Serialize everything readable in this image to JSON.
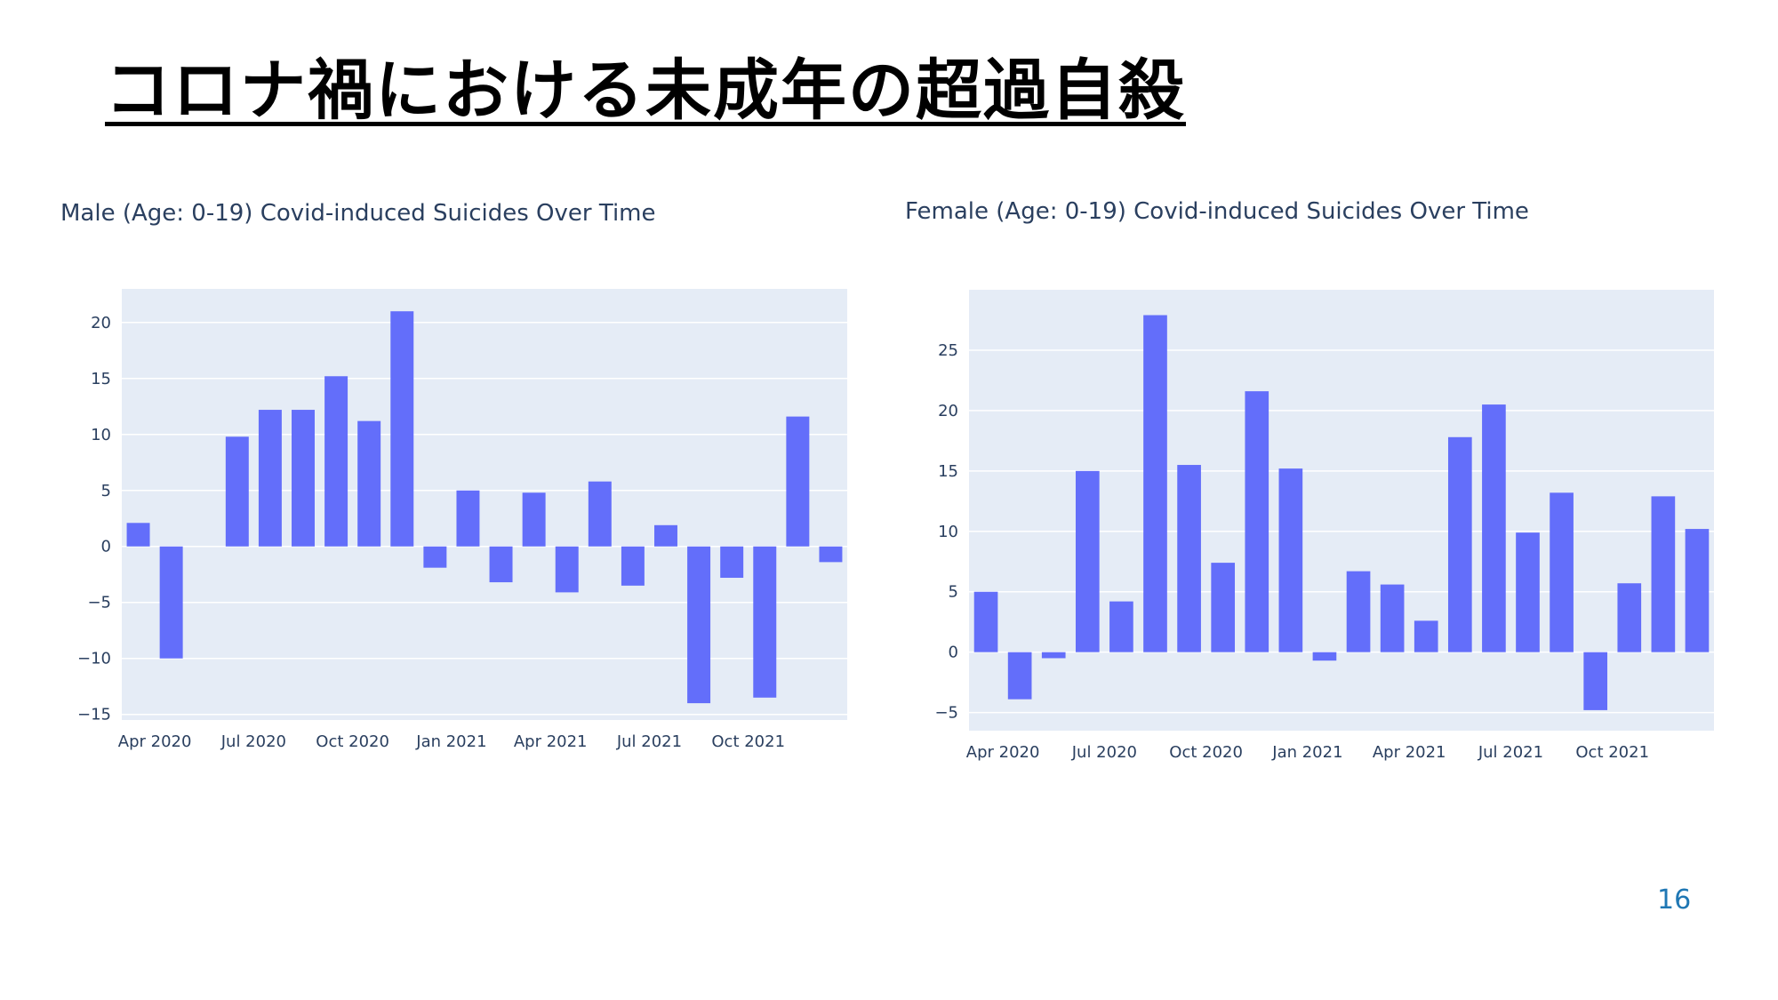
{
  "slide": {
    "title": "コロナ禍における未成年の超過自殺",
    "page_number": "16"
  },
  "colors": {
    "bar": "#636efa",
    "plot_bg": "#e5ecf6",
    "grid": "#ffffff",
    "tick_text": "#2a3f5f"
  },
  "chart_data": [
    {
      "id": "male",
      "type": "bar",
      "title": "Male (Age: 0-19) Covid-induced Suicides Over Time",
      "xlabel": "",
      "ylabel": "",
      "x": [
        "2020-03",
        "2020-04",
        "2020-05",
        "2020-06",
        "2020-07",
        "2020-08",
        "2020-09",
        "2020-10",
        "2020-11",
        "2020-12",
        "2021-01",
        "2021-02",
        "2021-03",
        "2021-04",
        "2021-05",
        "2021-06",
        "2021-07",
        "2021-08",
        "2021-09",
        "2021-10",
        "2021-11",
        "2021-12"
      ],
      "values": [
        2.1,
        -10,
        0,
        9.8,
        12.2,
        12.2,
        15.2,
        11.2,
        21,
        -1.9,
        5,
        -3.2,
        4.8,
        -4.1,
        5.8,
        -3.5,
        1.9,
        -14,
        -2.8,
        -13.5,
        11.6,
        -1.4
      ],
      "x_tick_labels": [
        "Apr 2020",
        "Jul 2020",
        "Oct 2020",
        "Jan 2021",
        "Apr 2021",
        "Jul 2021",
        "Oct 2021"
      ],
      "x_tick_months": [
        "2020-04",
        "2020-07",
        "2020-10",
        "2021-01",
        "2021-04",
        "2021-07",
        "2021-10"
      ],
      "ylim": [
        -15.5,
        23
      ],
      "y_ticks": [
        -15,
        -10,
        -5,
        0,
        5,
        10,
        15,
        20
      ],
      "y_tick_labels": [
        "−15",
        "−10",
        "−5",
        "0",
        "5",
        "10",
        "15",
        "20"
      ],
      "grid": true,
      "legend": "none"
    },
    {
      "id": "female",
      "type": "bar",
      "title": "Female (Age: 0-19) Covid-induced Suicides Over Time",
      "xlabel": "",
      "ylabel": "",
      "x": [
        "2020-03",
        "2020-04",
        "2020-05",
        "2020-06",
        "2020-07",
        "2020-08",
        "2020-09",
        "2020-10",
        "2020-11",
        "2020-12",
        "2021-01",
        "2021-02",
        "2021-03",
        "2021-04",
        "2021-05",
        "2021-06",
        "2021-07",
        "2021-08",
        "2021-09",
        "2021-10",
        "2021-11",
        "2021-12"
      ],
      "values": [
        5,
        -3.9,
        -0.5,
        15,
        4.2,
        27.9,
        15.5,
        7.4,
        21.6,
        15.2,
        -0.7,
        6.7,
        5.6,
        2.6,
        17.8,
        20.5,
        9.9,
        13.2,
        -4.8,
        5.7,
        12.9,
        10.2
      ],
      "x_tick_labels": [
        "Apr 2020",
        "Jul 2020",
        "Oct 2020",
        "Jan 2021",
        "Apr 2021",
        "Jul 2021",
        "Oct 2021"
      ],
      "x_tick_months": [
        "2020-04",
        "2020-07",
        "2020-10",
        "2021-01",
        "2021-04",
        "2021-07",
        "2021-10"
      ],
      "ylim": [
        -6.5,
        30
      ],
      "y_ticks": [
        -5,
        0,
        5,
        10,
        15,
        20,
        25
      ],
      "y_tick_labels": [
        "−5",
        "0",
        "5",
        "10",
        "15",
        "20",
        "25"
      ],
      "grid": true,
      "legend": "none"
    }
  ]
}
